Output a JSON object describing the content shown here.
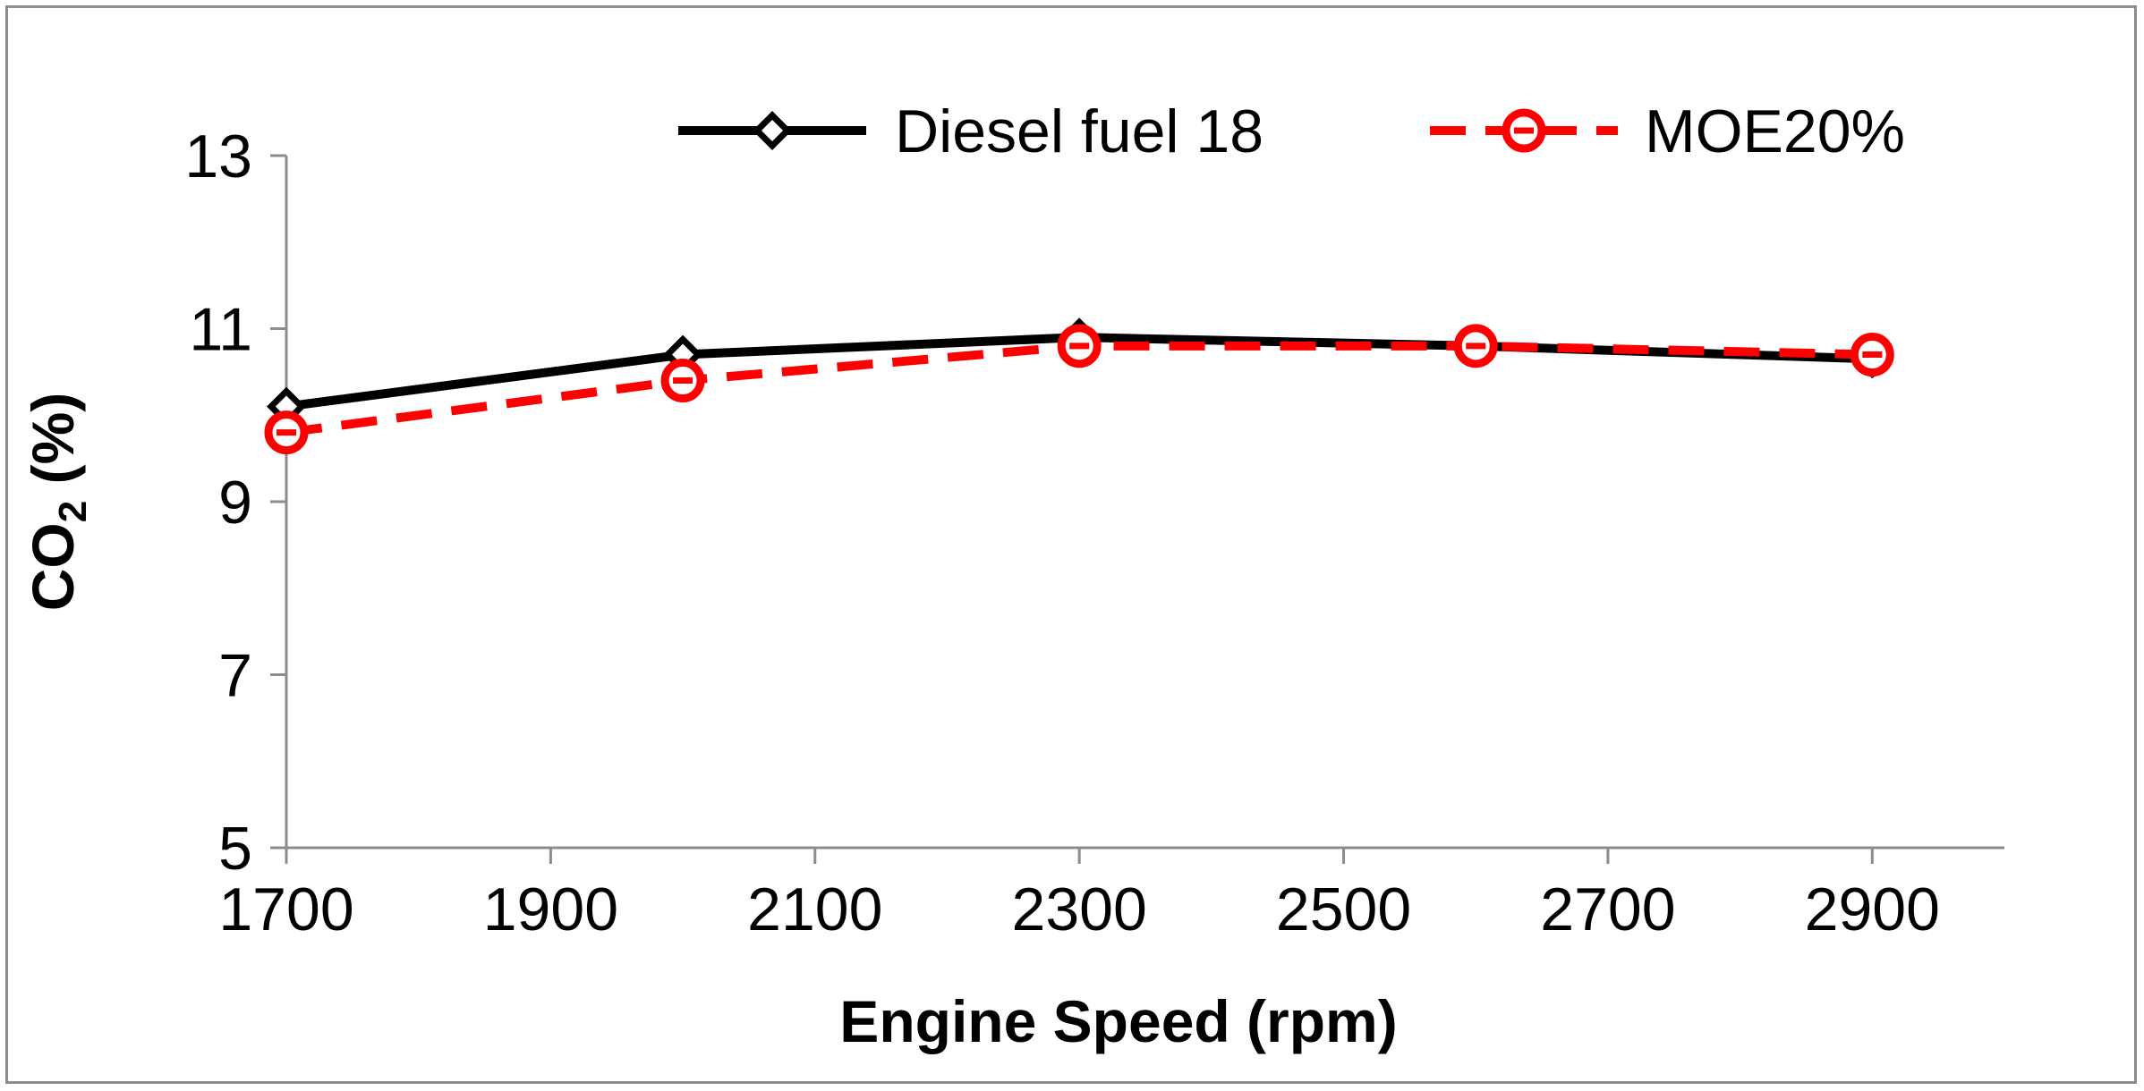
{
  "chart_data": {
    "type": "line",
    "xlabel": "Engine Speed (rpm)",
    "ylabel": {
      "main": "CO",
      "sub": "2",
      "suffix": " (%)"
    },
    "x_ticks": [
      1700,
      1900,
      2100,
      2300,
      2500,
      2700,
      2900
    ],
    "y_ticks": [
      5,
      7,
      9,
      11,
      13
    ],
    "xlim": [
      1700,
      3000
    ],
    "ylim": [
      5,
      13
    ],
    "grid": false,
    "legend_position": "top",
    "series": [
      {
        "name": "Diesel fuel 18",
        "x": [
          1700,
          2000,
          2300,
          2600,
          2900
        ],
        "y": [
          10.1,
          10.7,
          10.9,
          10.8,
          10.65
        ],
        "color": "#000000",
        "line_style": "solid",
        "marker": "diamond"
      },
      {
        "name": "MOE20%",
        "x": [
          1700,
          2000,
          2300,
          2600,
          2900
        ],
        "y": [
          9.8,
          10.4,
          10.8,
          10.8,
          10.7
        ],
        "color": "#ff0000",
        "line_style": "dashed",
        "marker": "circle"
      }
    ]
  }
}
